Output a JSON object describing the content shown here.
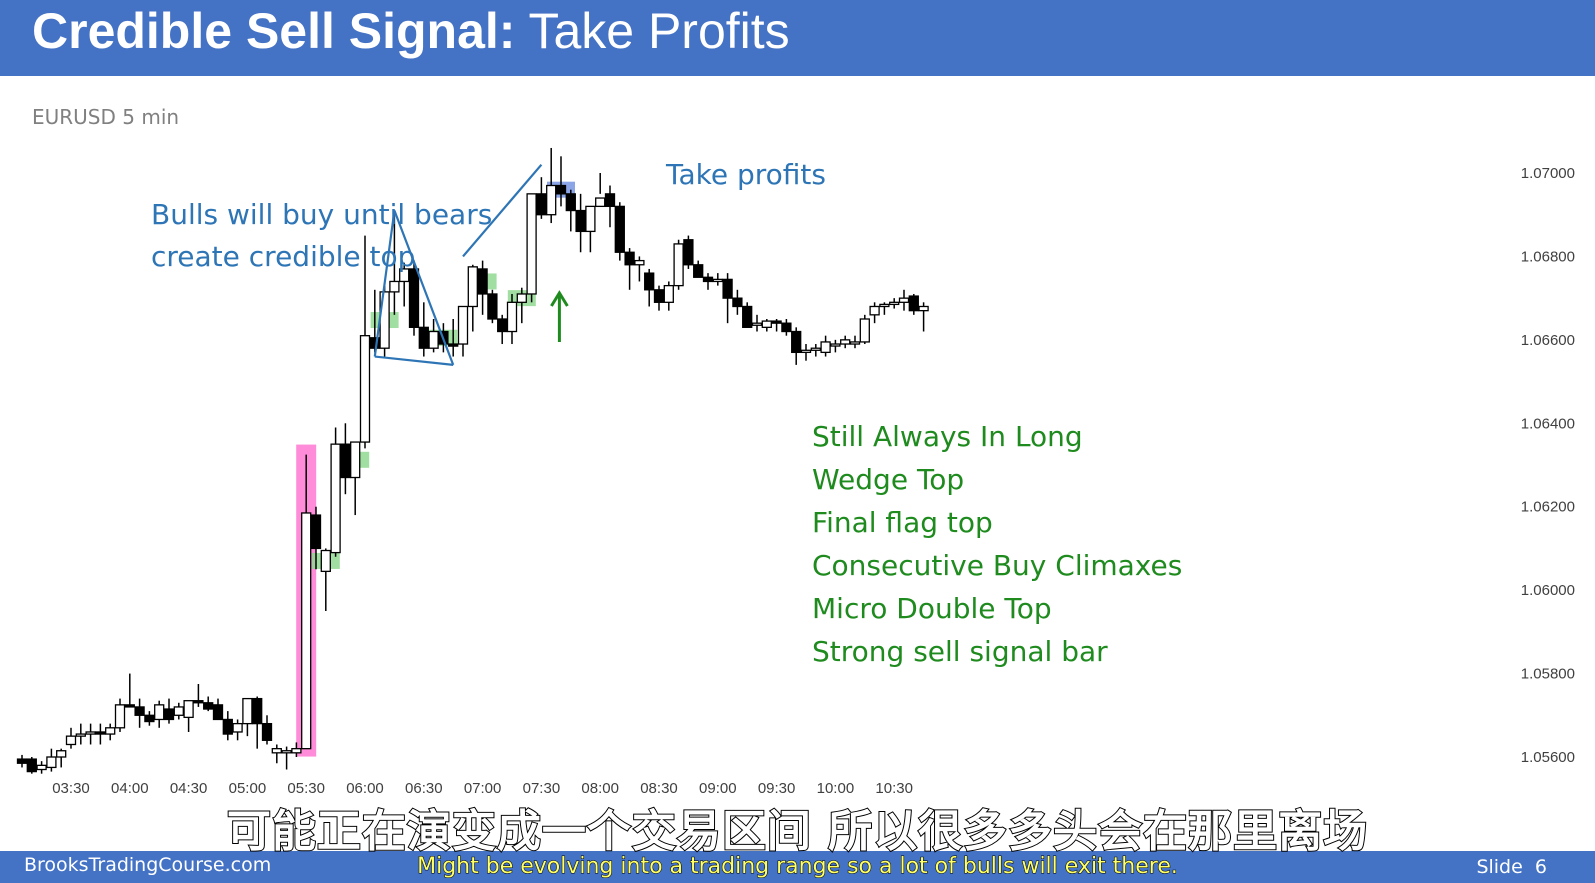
{
  "header": {
    "title_bold": "Credible Sell Signal:",
    "title_rest": " Take Profits",
    "background": "#4472c4"
  },
  "symbol_label": "EURUSD 5 min",
  "annotations": {
    "bulls_line1": "Bulls will buy until bears",
    "bulls_line2": "create credible top",
    "take_profits": "Take profits",
    "bullets": [
      "Still Always In Long",
      "Wedge Top",
      "Final flag top",
      "Consecutive Buy Climaxes",
      "Micro Double Top",
      "Strong sell signal bar"
    ],
    "colors": {
      "blue": "#2e75b6",
      "green": "#1f8b1f",
      "highlight_pink": "#ff66cc",
      "highlight_green": "#90d890",
      "highlight_blue": "#6f8fe0"
    }
  },
  "footer": {
    "site": "BrooksTradingCourse.com",
    "slide": "Slide",
    "slide_number": "6"
  },
  "subtitles": {
    "chinese": "可能正在演变成一个交易区间 所以很多多头会在那里离场",
    "english": "Might be evolving into a trading range  so a lot of bulls will exit there."
  },
  "chart_data": {
    "type": "candlestick",
    "instrument": "EURUSD",
    "timeframe": "5 min",
    "y_ticks": [
      "1.07000",
      "1.06800",
      "1.06600",
      "1.06400",
      "1.06200",
      "1.06000",
      "1.05800",
      "1.05600"
    ],
    "ylim": [
      1.0552,
      1.0706
    ],
    "x_ticks": [
      "03:30",
      "04:00",
      "04:30",
      "05:00",
      "05:30",
      "06:00",
      "06:30",
      "07:00",
      "07:30",
      "08:00",
      "08:30",
      "09:00",
      "09:30",
      "10:00",
      "10:30"
    ],
    "start_time": "03:05",
    "bar_minutes": 5,
    "bars": [
      [
        1.05595,
        1.05605,
        1.05575,
        1.05585
      ],
      [
        1.05595,
        1.056,
        1.0556,
        1.05565
      ],
      [
        1.0557,
        1.0559,
        1.0556,
        1.0558
      ],
      [
        1.05575,
        1.0562,
        1.05565,
        1.056
      ],
      [
        1.056,
        1.0562,
        1.05575,
        1.05615
      ],
      [
        1.0563,
        1.0567,
        1.0562,
        1.0565
      ],
      [
        1.0565,
        1.0568,
        1.0563,
        1.05655
      ],
      [
        1.05655,
        1.0568,
        1.0563,
        1.0566
      ],
      [
        1.0566,
        1.0568,
        1.0563,
        1.05655
      ],
      [
        1.05655,
        1.0568,
        1.0564,
        1.0567
      ],
      [
        1.0567,
        1.0574,
        1.0566,
        1.05725
      ],
      [
        1.05725,
        1.058,
        1.0572,
        1.0572
      ],
      [
        1.0572,
        1.0574,
        1.0567,
        1.057
      ],
      [
        1.057,
        1.0571,
        1.05675,
        1.05685
      ],
      [
        1.0569,
        1.05735,
        1.0567,
        1.05725
      ],
      [
        1.05715,
        1.0574,
        1.0568,
        1.0569
      ],
      [
        1.057,
        1.0573,
        1.0569,
        1.0572
      ],
      [
        1.05695,
        1.0573,
        1.0566,
        1.05735
      ],
      [
        1.05735,
        1.05775,
        1.0572,
        1.0573
      ],
      [
        1.0573,
        1.05745,
        1.0571,
        1.05715
      ],
      [
        1.05725,
        1.0574,
        1.057,
        1.0569
      ],
      [
        1.0569,
        1.0571,
        1.0564,
        1.05655
      ],
      [
        1.0566,
        1.0569,
        1.0564,
        1.0568
      ],
      [
        1.0568,
        1.0572,
        1.0565,
        1.0574
      ],
      [
        1.0574,
        1.05745,
        1.0562,
        1.0568
      ],
      [
        1.0568,
        1.057,
        1.0563,
        1.0564
      ],
      [
        1.0561,
        1.0563,
        1.05585,
        1.0562
      ],
      [
        1.0561,
        1.05625,
        1.0557,
        1.05615
      ],
      [
        1.0561,
        1.05635,
        1.056,
        1.0562
      ],
      [
        1.0562,
        1.06325,
        1.05625,
        1.06185
      ],
      [
        1.0618,
        1.062,
        1.0605,
        1.061
      ],
      [
        1.06045,
        1.061,
        1.0595,
        1.06095
      ],
      [
        1.0609,
        1.0639,
        1.0608,
        1.0635
      ],
      [
        1.0635,
        1.064,
        1.0623,
        1.0627
      ],
      [
        1.0627,
        1.0634,
        1.0618,
        1.06355
      ],
      [
        1.06355,
        1.0685,
        1.0634,
        1.0661
      ],
      [
        1.06605,
        1.0672,
        1.0657,
        1.0658
      ],
      [
        1.0658,
        1.0673,
        1.0656,
        1.06715
      ],
      [
        1.06715,
        1.069,
        1.0666,
        1.0674
      ],
      [
        1.0674,
        1.06785,
        1.0668,
        1.0677
      ],
      [
        1.0677,
        1.0679,
        1.0661,
        1.0663
      ],
      [
        1.0663,
        1.0669,
        1.0656,
        1.0658
      ],
      [
        1.0658,
        1.0665,
        1.0657,
        1.0662
      ],
      [
        1.0662,
        1.0664,
        1.0657,
        1.0659
      ],
      [
        1.0659,
        1.0665,
        1.0656,
        1.06585
      ],
      [
        1.0659,
        1.0662,
        1.0656,
        1.0668
      ],
      [
        1.0668,
        1.0678,
        1.0662,
        1.06775
      ],
      [
        1.0677,
        1.0679,
        1.0666,
        1.0671
      ],
      [
        1.0671,
        1.0672,
        1.0664,
        1.0665
      ],
      [
        1.0665,
        1.0666,
        1.0659,
        1.0662
      ],
      [
        1.0662,
        1.0671,
        1.0659,
        1.0669
      ],
      [
        1.0669,
        1.06725,
        1.0664,
        1.0671
      ],
      [
        1.0671,
        1.0695,
        1.0669,
        1.0695
      ],
      [
        1.0695,
        1.0699,
        1.0689,
        1.069
      ],
      [
        1.069,
        1.0706,
        1.0688,
        1.0697
      ],
      [
        1.0697,
        1.0704,
        1.0692,
        1.0695
      ],
      [
        1.0695,
        1.0696,
        1.0686,
        1.0691
      ],
      [
        1.0691,
        1.0695,
        1.0681,
        1.0686
      ],
      [
        1.0686,
        1.0688,
        1.0681,
        1.0692
      ],
      [
        1.0692,
        1.07,
        1.0695,
        1.0694
      ],
      [
        1.0695,
        1.0697,
        1.0687,
        1.0692
      ],
      [
        1.0692,
        1.0693,
        1.0679,
        1.0681
      ],
      [
        1.0681,
        1.0682,
        1.0672,
        1.0678
      ],
      [
        1.0678,
        1.068,
        1.0674,
        1.0679
      ],
      [
        1.0676,
        1.0677,
        1.0668,
        1.0672
      ],
      [
        1.0672,
        1.0673,
        1.0667,
        1.0669
      ],
      [
        1.0669,
        1.0674,
        1.0667,
        1.0673
      ],
      [
        1.0673,
        1.0684,
        1.0672,
        1.0683
      ],
      [
        1.0684,
        1.0685,
        1.0677,
        1.0678
      ],
      [
        1.0678,
        1.0679,
        1.0675,
        1.0675
      ],
      [
        1.0675,
        1.0676,
        1.0672,
        1.0674
      ],
      [
        1.0674,
        1.0676,
        1.0673,
        1.06745
      ],
      [
        1.06745,
        1.0676,
        1.0664,
        1.067
      ],
      [
        1.067,
        1.0672,
        1.0666,
        1.0668
      ],
      [
        1.0668,
        1.0669,
        1.0663,
        1.0663
      ],
      [
        1.06635,
        1.0666,
        1.0662,
        1.0664
      ],
      [
        1.0663,
        1.0665,
        1.0662,
        1.06645
      ],
      [
        1.06645,
        1.0665,
        1.0662,
        1.0664
      ],
      [
        1.0664,
        1.0665,
        1.0661,
        1.0662
      ],
      [
        1.0662,
        1.0663,
        1.0654,
        1.0657
      ],
      [
        1.0657,
        1.0659,
        1.0655,
        1.06575
      ],
      [
        1.06575,
        1.0659,
        1.0656,
        1.0658
      ],
      [
        1.0657,
        1.0661,
        1.0656,
        1.06595
      ],
      [
        1.0659,
        1.066,
        1.0657,
        1.0659
      ],
      [
        1.0659,
        1.0661,
        1.0658,
        1.066
      ],
      [
        1.0659,
        1.0661,
        1.0658,
        1.06595
      ],
      [
        1.06595,
        1.0666,
        1.0659,
        1.0665
      ],
      [
        1.0666,
        1.0669,
        1.0664,
        1.0668
      ],
      [
        1.0668,
        1.0669,
        1.0666,
        1.06685
      ],
      [
        1.06685,
        1.067,
        1.06675,
        1.0669
      ],
      [
        1.0669,
        1.0672,
        1.0667,
        1.067
      ],
      [
        1.06705,
        1.0671,
        1.0666,
        1.0667
      ],
      [
        1.0667,
        1.0669,
        1.0662,
        1.0668
      ]
    ],
    "highlights": {
      "pink_bar_index": 29,
      "green_bar_indices": [
        31,
        34,
        37,
        43,
        47,
        51
      ],
      "blue_bar_index": 55
    },
    "trendlines": [
      {
        "points": [
          [
            36,
            1.0656
          ],
          [
            44,
            1.0654
          ]
        ]
      },
      {
        "points": [
          [
            36,
            1.0656
          ],
          [
            38,
            1.0691
          ],
          [
            44,
            1.0654
          ]
        ]
      },
      {
        "points": [
          [
            45,
            1.068
          ],
          [
            53,
            1.0702
          ]
        ]
      }
    ],
    "arrow_bar_index": 53
  }
}
